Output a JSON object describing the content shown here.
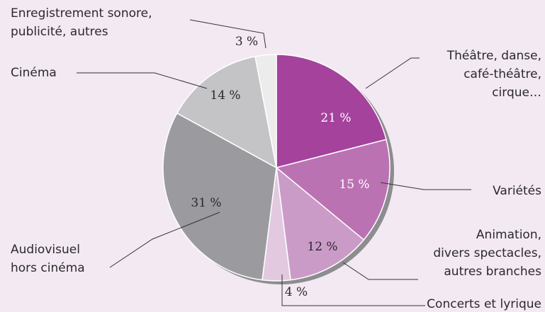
{
  "chart_data": {
    "type": "pie",
    "slices": [
      {
        "label_lines": [
          "Théâtre, danse,",
          "café-théâtre,",
          "cirque…"
        ],
        "value": 21,
        "value_label": "21 %",
        "color": "#a4429c",
        "value_color": "#ffffff"
      },
      {
        "label_lines": [
          "Variétés"
        ],
        "value": 15,
        "value_label": "15 %",
        "color": "#bb72b2",
        "value_color": "#ffffff"
      },
      {
        "label_lines": [
          "Animation,",
          "divers spectacles,",
          "autres branches"
        ],
        "value": 12,
        "value_label": "12 %",
        "color": "#cb9bc8",
        "value_color": "#2a2a2a"
      },
      {
        "label_lines": [
          "Concerts et lyrique"
        ],
        "value": 4,
        "value_label": "4 %",
        "color": "#e2c9e0",
        "value_color": "#2a2a2a"
      },
      {
        "label_lines": [
          "Audiovisuel",
          "hors cinéma"
        ],
        "value": 31,
        "value_label": "31 %",
        "color": "#9b9b9f",
        "value_color": "#2a2a2a"
      },
      {
        "label_lines": [
          "Cinéma"
        ],
        "value": 14,
        "value_label": "14 %",
        "color": "#c4c4c7",
        "value_color": "#2a2a2a"
      },
      {
        "label_lines": [
          "Enregistrement sonore,",
          "publicité, autres"
        ],
        "value": 3,
        "value_label": "3 %",
        "color": "#ececec",
        "value_color": "#2a2a2a"
      }
    ],
    "start": "12 o'clock, clockwise",
    "background": "#f3e9f3",
    "edge_color": "#ffffff"
  }
}
